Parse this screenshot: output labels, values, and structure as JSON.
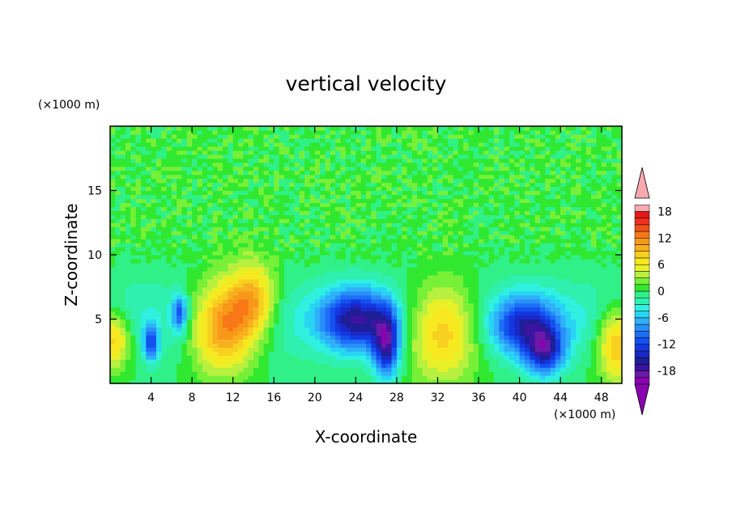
{
  "chart_data": {
    "type": "heatmap",
    "title": "vertical velocity",
    "xlabel": "X-coordinate",
    "ylabel": "Z-coordinate",
    "x_unit": "(×1000 m)",
    "z_unit": "(×1000 m)",
    "xlim": [
      0,
      50
    ],
    "zlim": [
      0,
      20
    ],
    "x_ticks": [
      4,
      8,
      12,
      16,
      20,
      24,
      28,
      32,
      36,
      40,
      44,
      48
    ],
    "x_tick_labels": [
      "4",
      "8",
      "12",
      "16",
      "20",
      "24",
      "28",
      "32",
      "36",
      "40",
      "44",
      "48"
    ],
    "z_ticks": [
      5,
      10,
      15
    ],
    "z_tick_labels": [
      "5",
      "10",
      "15"
    ],
    "colorbar": {
      "levels": [
        -21,
        -19.5,
        -18,
        -16.5,
        -15,
        -13.5,
        -12,
        -10.5,
        -9,
        -7.5,
        -6,
        -4.5,
        -3,
        -1.5,
        0,
        1.5,
        3,
        4.5,
        6,
        7.5,
        9,
        10.5,
        12,
        13.5,
        15,
        16.5,
        18,
        19.5,
        21
      ],
      "tick_values": [
        18,
        12,
        6,
        0,
        -6,
        -12,
        -18
      ],
      "tick_labels": [
        "18",
        "12",
        "6",
        "0",
        "-6",
        "-12",
        "-18"
      ],
      "colors": [
        "#8a00b0",
        "#6a1aa8",
        "#3c14a0",
        "#1e1e96",
        "#1a28c8",
        "#1438e0",
        "#1450f0",
        "#1e6ef8",
        "#2890f8",
        "#30b0f8",
        "#28d4f4",
        "#30f0e0",
        "#30f0b0",
        "#30f088",
        "#30e830",
        "#78f038",
        "#b8f040",
        "#e8f028",
        "#f8e820",
        "#f8d020",
        "#f8b020",
        "#f89818",
        "#f87818",
        "#f05018",
        "#f03020",
        "#e81818",
        "#f8a8b0"
      ],
      "extend_low_color": "#8a00b0",
      "extend_high_color": "#f8a8b0"
    },
    "features": [
      {
        "x": 0.3,
        "z": 3.5,
        "w": 5.5,
        "peak": 10,
        "sx": 1.2,
        "sz": 1.6
      },
      {
        "x": 11,
        "z": 4.5,
        "w": 16,
        "peak": 14,
        "sx": 2.2,
        "sz": 2.4
      },
      {
        "x": 14,
        "z": 6.5,
        "w": 10,
        "peak": 10,
        "sx": 1.6,
        "sz": 2.0
      },
      {
        "x": 32.5,
        "z": 4.2,
        "w": 12,
        "peak": 11,
        "sx": 2.6,
        "sz": 2.6
      },
      {
        "x": 49.6,
        "z": 3.2,
        "w": 12,
        "peak": 11,
        "sx": 1.4,
        "sz": 2.0
      },
      {
        "x": 24,
        "z": 5,
        "w": -13,
        "peak": -14,
        "sx": 2.3,
        "sz": 1.6
      },
      {
        "x": 27,
        "z": 3,
        "w": -15,
        "peak": -15,
        "sx": 0.9,
        "sz": 1.8
      },
      {
        "x": 40.5,
        "z": 4.5,
        "w": -12,
        "peak": -12,
        "sx": 2.2,
        "sz": 1.6
      },
      {
        "x": 42.5,
        "z": 2.5,
        "w": -13,
        "peak": -13,
        "sx": 1.3,
        "sz": 1.3
      },
      {
        "x": 4,
        "z": 3.2,
        "w": -11,
        "peak": -11,
        "sx": 0.5,
        "sz": 1.0
      },
      {
        "x": 6.8,
        "z": 5.5,
        "w": -10,
        "peak": -10,
        "sx": 0.5,
        "sz": 1.0
      }
    ]
  }
}
